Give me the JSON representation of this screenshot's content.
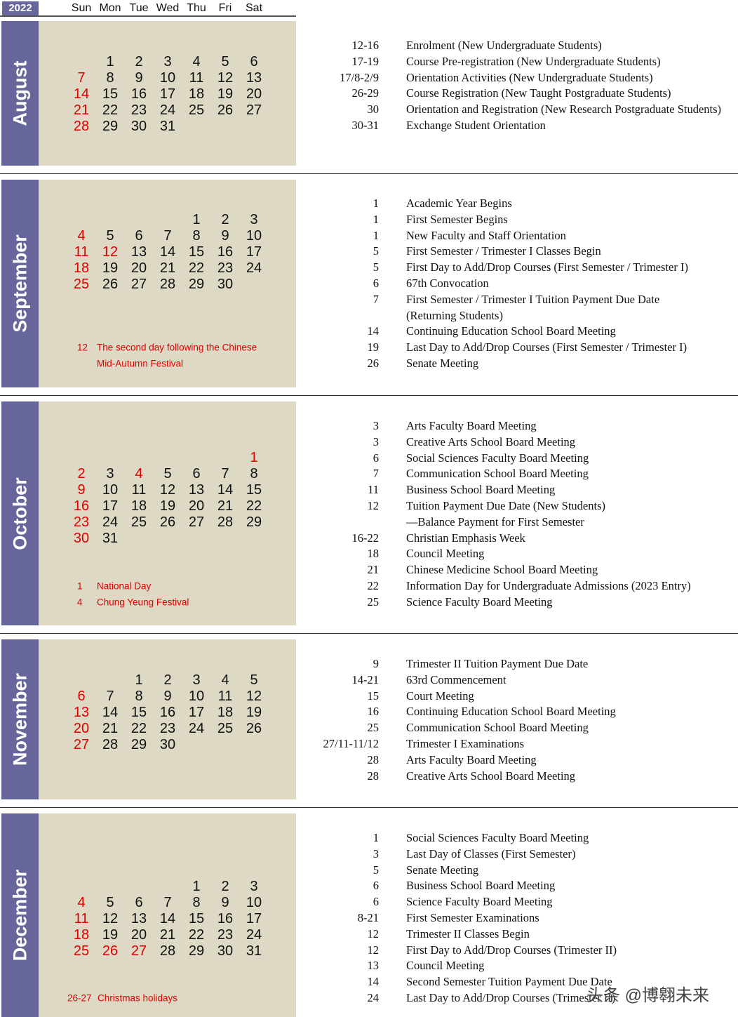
{
  "year": "2022",
  "weekdays": [
    "Sun",
    "Mon",
    "Tue",
    "Wed",
    "Thu",
    "Fri",
    "Sat"
  ],
  "colors": {
    "sidebar": "#66669a",
    "calendar_bg": "#ddd9c4",
    "holiday": "#e00000"
  },
  "months": [
    {
      "name": "August",
      "weeks": [
        [
          null,
          1,
          2,
          3,
          4,
          5,
          6
        ],
        [
          7,
          8,
          9,
          10,
          11,
          12,
          13
        ],
        [
          14,
          15,
          16,
          17,
          18,
          19,
          20
        ],
        [
          21,
          22,
          23,
          24,
          25,
          26,
          27
        ],
        [
          28,
          29,
          30,
          31,
          null,
          null,
          null
        ]
      ],
      "red_days": [
        7,
        14,
        21,
        28
      ],
      "notes": [],
      "events": [
        [
          "12-16",
          "Enrolment (New Undergraduate Students)"
        ],
        [
          "17-19",
          "Course Pre-registration (New Undergraduate Students)"
        ],
        [
          "17/8-2/9",
          "Orientation Activities (New Undergraduate Students)"
        ],
        [
          "26-29",
          "Course Registration (New Taught Postgraduate Students)"
        ],
        [
          "30",
          "Orientation and Registration (New Research Postgraduate Students)"
        ],
        [
          "30-31",
          "Exchange Student Orientation"
        ]
      ]
    },
    {
      "name": "September",
      "weeks": [
        [
          null,
          null,
          null,
          null,
          1,
          2,
          3
        ],
        [
          4,
          5,
          6,
          7,
          8,
          9,
          10
        ],
        [
          11,
          12,
          13,
          14,
          15,
          16,
          17
        ],
        [
          18,
          19,
          20,
          21,
          22,
          23,
          24
        ],
        [
          25,
          26,
          27,
          28,
          29,
          30,
          null
        ]
      ],
      "red_days": [
        4,
        11,
        12,
        18,
        25
      ],
      "notes": [
        [
          "12",
          "The second day following the Chinese"
        ],
        [
          "",
          "Mid-Autumn Festival"
        ]
      ],
      "events": [
        [
          "1",
          "Academic Year Begins"
        ],
        [
          "1",
          "First Semester Begins"
        ],
        [
          "1",
          "New Faculty and Staff Orientation"
        ],
        [
          "5",
          "First Semester / Trimester I Classes Begin"
        ],
        [
          "5",
          "First Day to Add/Drop Courses (First Semester / Trimester I)"
        ],
        [
          "6",
          "67th Convocation"
        ],
        [
          "7",
          "First Semester / Trimester I Tuition Payment Due Date"
        ],
        [
          "",
          "(Returning Students)"
        ],
        [
          "14",
          "Continuing Education School Board Meeting"
        ],
        [
          "19",
          "Last Day to Add/Drop Courses (First Semester / Trimester I)"
        ],
        [
          "26",
          "Senate Meeting"
        ]
      ]
    },
    {
      "name": "October",
      "weeks": [
        [
          null,
          null,
          null,
          null,
          null,
          null,
          1
        ],
        [
          2,
          3,
          4,
          5,
          6,
          7,
          8
        ],
        [
          9,
          10,
          11,
          12,
          13,
          14,
          15
        ],
        [
          16,
          17,
          18,
          19,
          20,
          21,
          22
        ],
        [
          23,
          24,
          25,
          26,
          27,
          28,
          29
        ],
        [
          30,
          31,
          null,
          null,
          null,
          null,
          null
        ]
      ],
      "red_days": [
        1,
        2,
        4,
        9,
        16,
        23,
        30
      ],
      "notes": [
        [
          "1",
          "National Day"
        ],
        [
          "4",
          "Chung Yeung Festival"
        ]
      ],
      "events": [
        [
          "3",
          "Arts Faculty Board Meeting"
        ],
        [
          "3",
          "Creative Arts School Board Meeting"
        ],
        [
          "6",
          "Social Sciences Faculty Board Meeting"
        ],
        [
          "7",
          "Communication School Board Meeting"
        ],
        [
          "11",
          "Business School Board Meeting"
        ],
        [
          "12",
          "Tuition Payment Due Date (New Students)"
        ],
        [
          "",
          "—Balance Payment for First Semester"
        ],
        [
          "16-22",
          "Christian Emphasis Week"
        ],
        [
          "18",
          "Council Meeting"
        ],
        [
          "21",
          "Chinese Medicine School Board Meeting"
        ],
        [
          "22",
          "Information Day for Undergraduate Admissions (2023 Entry)"
        ],
        [
          "25",
          "Science Faculty Board Meeting"
        ]
      ]
    },
    {
      "name": "November",
      "weeks": [
        [
          null,
          null,
          1,
          2,
          3,
          4,
          5
        ],
        [
          6,
          7,
          8,
          9,
          10,
          11,
          12
        ],
        [
          13,
          14,
          15,
          16,
          17,
          18,
          19
        ],
        [
          20,
          21,
          22,
          23,
          24,
          25,
          26
        ],
        [
          27,
          28,
          29,
          30,
          null,
          null,
          null
        ]
      ],
      "red_days": [
        6,
        13,
        20,
        27
      ],
      "notes": [],
      "events": [
        [
          "9",
          "Trimester II Tuition Payment Due Date"
        ],
        [
          "14-21",
          "63rd Commencement"
        ],
        [
          "15",
          "Court Meeting"
        ],
        [
          "16",
          "Continuing Education School Board Meeting"
        ],
        [
          "25",
          "Communication School Board Meeting"
        ],
        [
          "27/11-11/12",
          "Trimester I Examinations"
        ],
        [
          "28",
          "Arts Faculty Board Meeting"
        ],
        [
          "28",
          "Creative Arts School Board Meeting"
        ]
      ]
    },
    {
      "name": "December",
      "weeks": [
        [
          null,
          null,
          null,
          null,
          1,
          2,
          3
        ],
        [
          4,
          5,
          6,
          7,
          8,
          9,
          10
        ],
        [
          11,
          12,
          13,
          14,
          15,
          16,
          17
        ],
        [
          18,
          19,
          20,
          21,
          22,
          23,
          24
        ],
        [
          25,
          26,
          27,
          28,
          29,
          30,
          31
        ]
      ],
      "red_days": [
        4,
        11,
        18,
        25,
        26,
        27
      ],
      "notes": [
        [
          "26-27",
          "Christmas holidays"
        ]
      ],
      "events": [
        [
          "1",
          "Social Sciences Faculty Board Meeting"
        ],
        [
          "3",
          "Last Day of Classes (First Semester)"
        ],
        [
          "5",
          "Senate Meeting"
        ],
        [
          "6",
          "Business School Board Meeting"
        ],
        [
          "6",
          "Science Faculty Board Meeting"
        ],
        [
          "8-21",
          "First Semester Examinations"
        ],
        [
          "12",
          "Trimester II Classes Begin"
        ],
        [
          "12",
          "First Day to Add/Drop Courses (Trimester II)"
        ],
        [
          "13",
          "Council Meeting"
        ],
        [
          "14",
          "Second Semester Tuition Payment Due Date"
        ],
        [
          "24",
          "Last Day to Add/Drop Courses (Trimester II)"
        ]
      ]
    }
  ],
  "watermark": "头条 @博翱未来"
}
